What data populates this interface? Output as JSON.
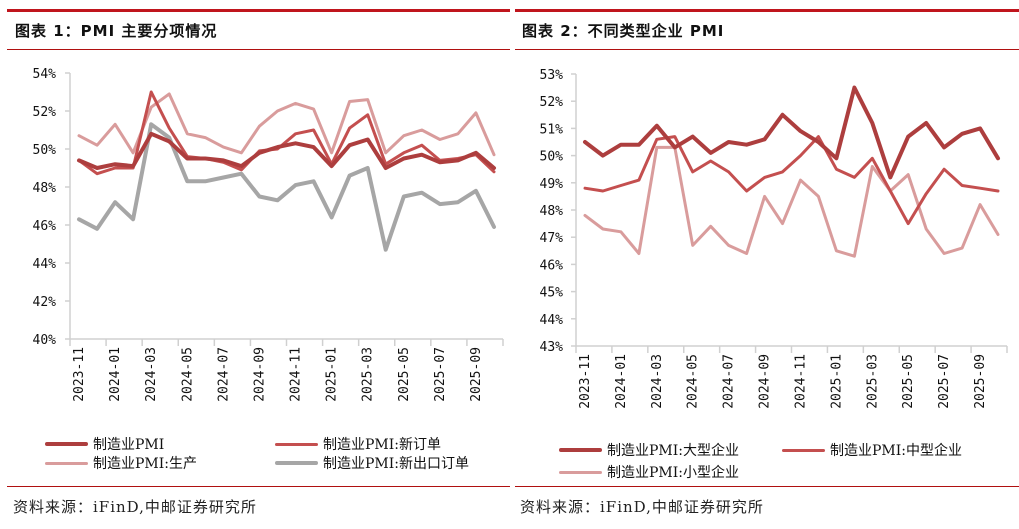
{
  "charts_header": [
    {
      "title": "图表 1：PMI 主要分项情况",
      "source": "资料来源：iFinD,中邮证券研究所"
    },
    {
      "title": "图表 2：不同类型企业 PMI",
      "source": "资料来源：iFinD,中邮证券研究所"
    }
  ],
  "colors": {
    "accent": "#c0151d"
  },
  "chart_data": [
    {
      "type": "line",
      "title": "图表 1：PMI 主要分项情况",
      "categories": [
        "2023-11",
        "2023-12",
        "2024-01",
        "2024-02",
        "2024-03",
        "2024-04",
        "2024-05",
        "2024-06",
        "2024-07",
        "2024-08",
        "2024-09",
        "2024-10",
        "2024-11",
        "2024-12",
        "2025-01",
        "2025-02",
        "2025-03",
        "2025-04",
        "2025-05",
        "2025-06",
        "2025-07",
        "2025-08",
        "2025-09",
        "2025-10"
      ],
      "x_tick_labels": [
        "2023-11",
        "2024-01",
        "2024-03",
        "2024-05",
        "2024-07",
        "2024-09",
        "2024-11",
        "2025-01",
        "2025-03",
        "2025-05",
        "2025-07",
        "2025-09"
      ],
      "y_tick_labels": [
        "40%",
        "42%",
        "44%",
        "46%",
        "48%",
        "50%",
        "52%",
        "54%"
      ],
      "ylim": [
        40,
        54
      ],
      "yunit": "%",
      "grid": false,
      "legend_position": "bottom",
      "series": [
        {
          "name": "制造业PMI",
          "color": "#ad3e3e",
          "width": 4,
          "values": [
            49.4,
            49.0,
            49.2,
            49.1,
            50.8,
            50.4,
            49.5,
            49.5,
            49.4,
            49.1,
            49.8,
            50.1,
            50.3,
            50.1,
            49.1,
            50.2,
            50.5,
            49.0,
            49.5,
            49.7,
            49.3,
            49.4,
            49.8,
            49.0
          ]
        },
        {
          "name": "制造业PMI:新订单",
          "color": "#c44f4f",
          "width": 3,
          "values": [
            49.4,
            48.7,
            49.0,
            49.0,
            53.0,
            51.1,
            49.6,
            49.5,
            49.3,
            48.9,
            49.9,
            50.0,
            50.8,
            51.0,
            49.2,
            51.1,
            51.8,
            49.2,
            49.8,
            50.2,
            49.4,
            49.5,
            49.7,
            48.8
          ]
        },
        {
          "name": "制造业PMI:生产",
          "color": "#d99c9c",
          "width": 3,
          "values": [
            50.7,
            50.2,
            51.3,
            49.8,
            52.2,
            52.9,
            50.8,
            50.6,
            50.1,
            49.8,
            51.2,
            52.0,
            52.4,
            52.1,
            49.8,
            52.5,
            52.6,
            49.8,
            50.7,
            51.0,
            50.5,
            50.8,
            51.9,
            49.7
          ]
        },
        {
          "name": "制造业PMI:新出口订单",
          "color": "#a6a6a6",
          "width": 4,
          "values": [
            46.3,
            45.8,
            47.2,
            46.3,
            51.3,
            50.6,
            48.3,
            48.3,
            48.5,
            48.7,
            47.5,
            47.3,
            48.1,
            48.3,
            46.4,
            48.6,
            49.0,
            44.7,
            47.5,
            47.7,
            47.1,
            47.2,
            47.8,
            45.9
          ]
        }
      ]
    },
    {
      "type": "line",
      "title": "图表 2：不同类型企业 PMI",
      "categories": [
        "2023-11",
        "2023-12",
        "2024-01",
        "2024-02",
        "2024-03",
        "2024-04",
        "2024-05",
        "2024-06",
        "2024-07",
        "2024-08",
        "2024-09",
        "2024-10",
        "2024-11",
        "2024-12",
        "2025-01",
        "2025-02",
        "2025-03",
        "2025-04",
        "2025-05",
        "2025-06",
        "2025-07",
        "2025-08",
        "2025-09",
        "2025-10"
      ],
      "x_tick_labels": [
        "2023-11",
        "2024-01",
        "2024-03",
        "2024-05",
        "2024-07",
        "2024-09",
        "2024-11",
        "2025-01",
        "2025-03",
        "2025-05",
        "2025-07",
        "2025-09"
      ],
      "y_tick_labels": [
        "43%",
        "44%",
        "45%",
        "46%",
        "47%",
        "48%",
        "49%",
        "50%",
        "51%",
        "52%",
        "53%"
      ],
      "ylim": [
        43,
        53
      ],
      "yunit": "%",
      "grid": false,
      "legend_position": "bottom",
      "series": [
        {
          "name": "制造业PMI:大型企业",
          "color": "#ad3e3e",
          "width": 4,
          "values": [
            50.5,
            50.0,
            50.4,
            50.4,
            51.1,
            50.3,
            50.7,
            50.1,
            50.5,
            50.4,
            50.6,
            51.5,
            50.9,
            50.5,
            49.9,
            52.5,
            51.2,
            49.2,
            50.7,
            51.2,
            50.3,
            50.8,
            51.0,
            49.9
          ]
        },
        {
          "name": "制造业PMI:中型企业",
          "color": "#c44f4f",
          "width": 3,
          "values": [
            48.8,
            48.7,
            48.9,
            49.1,
            50.6,
            50.7,
            49.4,
            49.8,
            49.4,
            48.7,
            49.2,
            49.4,
            50.0,
            50.7,
            49.5,
            49.2,
            49.9,
            48.7,
            47.5,
            48.6,
            49.5,
            48.9,
            48.8,
            48.7
          ]
        },
        {
          "name": "制造业PMI:小型企业",
          "color": "#d99c9c",
          "width": 3,
          "values": [
            47.8,
            47.3,
            47.2,
            46.4,
            50.3,
            50.3,
            46.7,
            47.4,
            46.7,
            46.4,
            48.5,
            47.5,
            49.1,
            48.5,
            46.5,
            46.3,
            49.6,
            48.7,
            49.3,
            47.3,
            46.4,
            46.6,
            48.2,
            47.1
          ]
        }
      ]
    }
  ]
}
